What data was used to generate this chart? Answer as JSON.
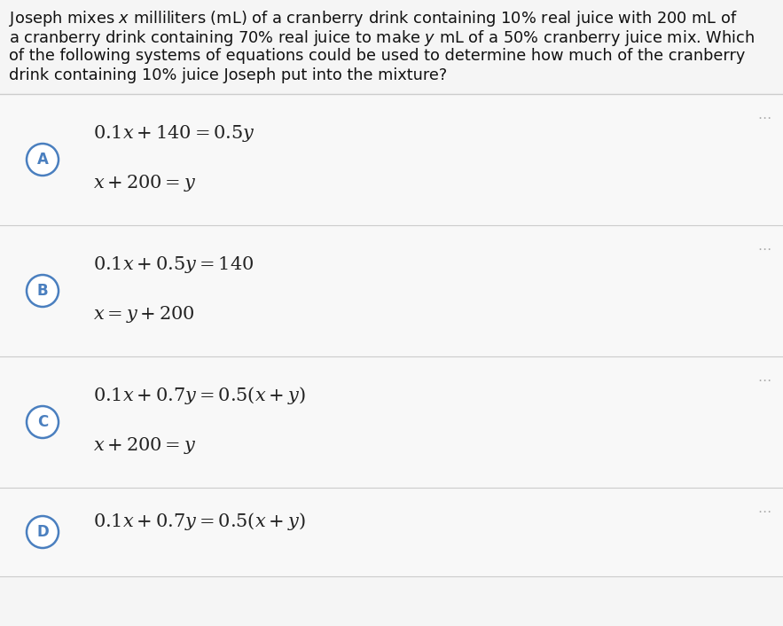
{
  "background_color": "#f5f5f5",
  "question_bg": "#ffffff",
  "question_lines": [
    "Joseph mixes $x$ milliliters (mL) of a cranberry drink containing 10% real juice with 200 mL of",
    "a cranberry drink containing 70% real juice to make $y$ mL of a 50% cranberry juice mix. Which",
    "of the following systems of equations could be used to determine how much of the cranberry",
    "drink containing 10% juice Joseph put into the mixture?"
  ],
  "options": [
    {
      "label": "A",
      "eq1": "$0.1x + 140 = 0.5y$",
      "eq2": "$x + 200 = y$"
    },
    {
      "label": "B",
      "eq1": "$0.1x + 0.5y = 140$",
      "eq2": "$x = y + 200$"
    },
    {
      "label": "C",
      "eq1": "$0.1x + 0.7y = 0.5(x + y)$",
      "eq2": "$x + 200 = y$"
    },
    {
      "label": "D",
      "eq1": "$0.1x + 0.7y = 0.5(x + y)$",
      "eq2": null
    }
  ],
  "separator_color": "#cccccc",
  "circle_border_color": "#4a7fbf",
  "circle_fill_color": "#ffffff",
  "label_color": "#4a7fbf",
  "dots_color": "#aaaaaa",
  "text_color": "#111111",
  "eq_color": "#222222"
}
